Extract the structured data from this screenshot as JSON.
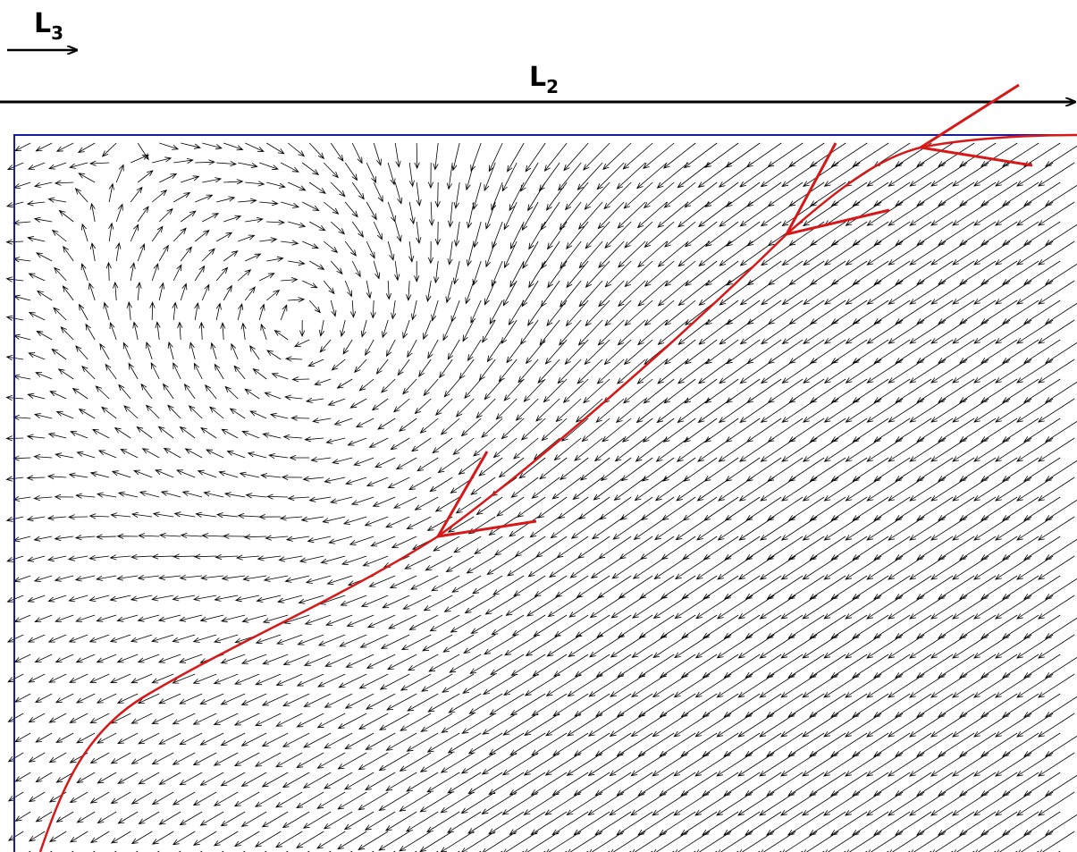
{
  "labels": [
    {
      "text": "L",
      "subscript": "3"
    },
    {
      "text": "L",
      "subscript": "2"
    }
  ]
}
